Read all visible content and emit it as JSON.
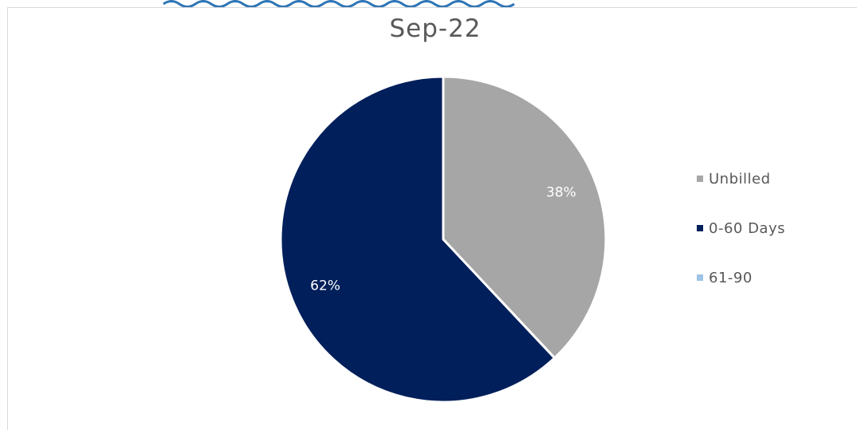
{
  "chart_data": {
    "type": "pie",
    "title": "Sep-22",
    "slices": [
      {
        "label": "Unbilled",
        "value": 38,
        "data_label": "38%",
        "color": "#a6a6a6"
      },
      {
        "label": "0-60 Days",
        "value": 62,
        "data_label": "62%",
        "color": "#001f5b"
      },
      {
        "label": "61-90",
        "value": 0,
        "data_label": "",
        "color": "#9dc3e6"
      }
    ],
    "legend_position": "right",
    "start_angle_note": "clockwise from top",
    "slice_border_color": "#ffffff"
  },
  "header_strip_color": "#2e75b6"
}
